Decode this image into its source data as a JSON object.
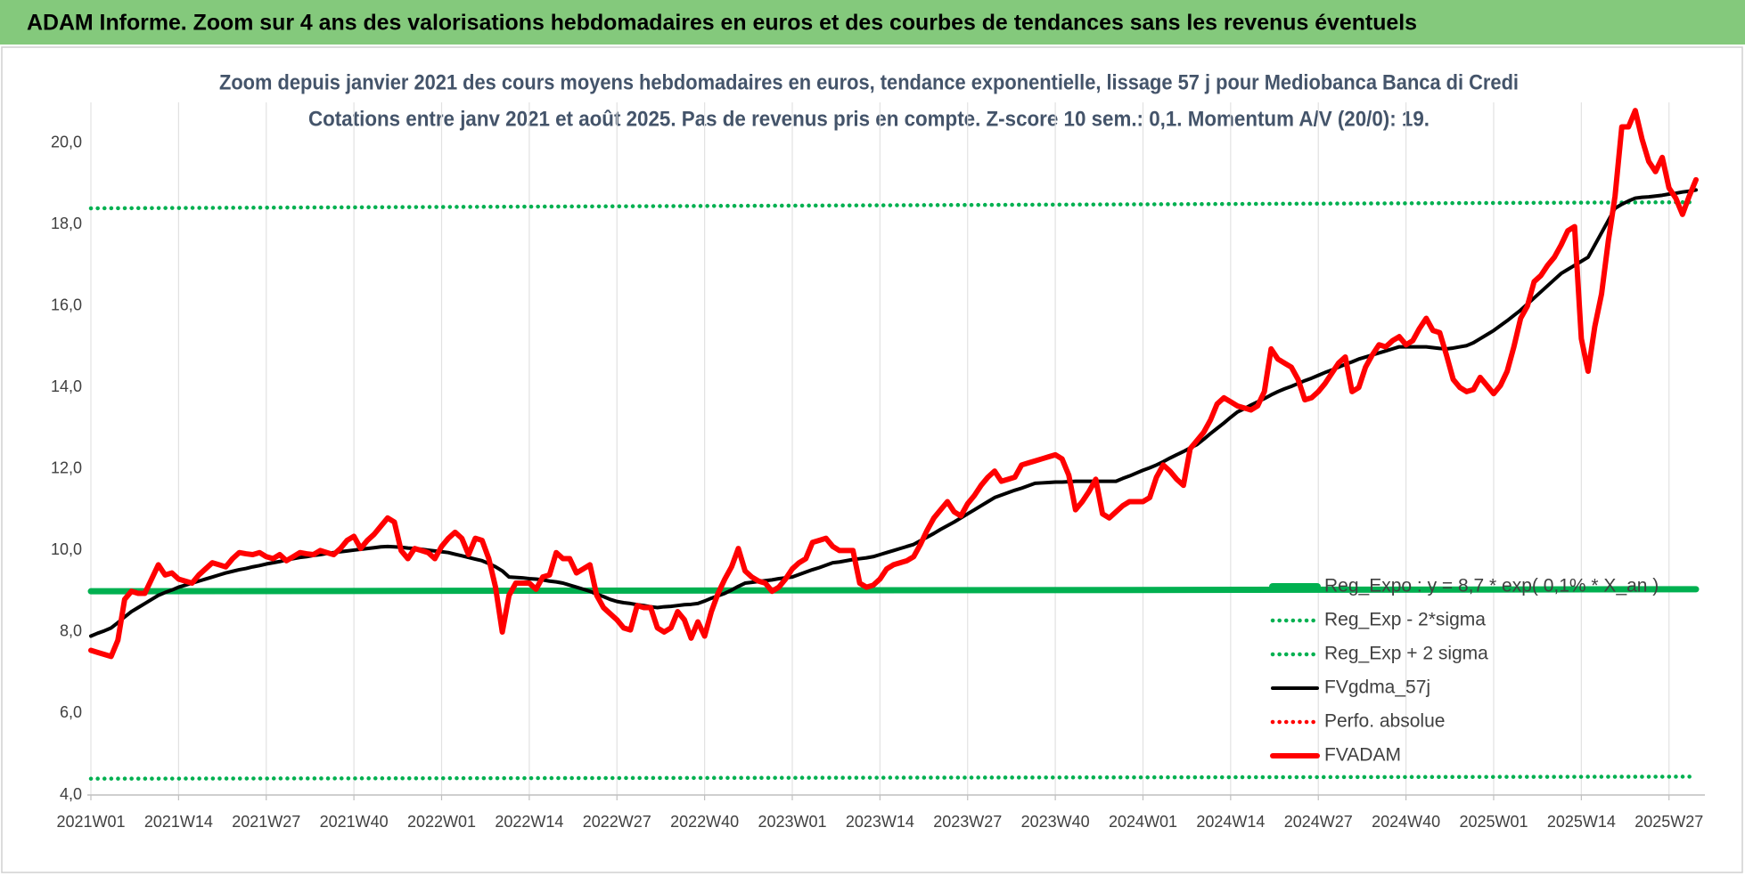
{
  "header": {
    "title": "ADAM Informe. Zoom sur 4 ans des valorisations hebdomadaires en euros et des courbes de tendances sans les revenus éventuels"
  },
  "chart_data": {
    "type": "line",
    "title": "Zoom depuis janvier 2021 des cours moyens hebdomadaires en euros, tendance exponentielle, lissage 57 j pour Mediobanca Banca di Credi",
    "subtitle": "Cotations entre janv 2021 et août 2025.  Pas de revenus pris en compte. Z-score 10 sem.: 0,1. Momentum A/V (20/0): 19.",
    "categories": [
      "2021W01",
      null,
      null,
      null,
      null,
      null,
      null,
      null,
      null,
      null,
      null,
      null,
      null,
      "2021W14",
      null,
      null,
      null,
      null,
      null,
      null,
      null,
      null,
      null,
      null,
      null,
      null,
      "2021W27",
      null,
      null,
      null,
      null,
      null,
      null,
      null,
      null,
      null,
      null,
      null,
      null,
      "2021W40",
      null,
      null,
      null,
      null,
      null,
      null,
      null,
      null,
      null,
      null,
      null,
      null,
      "2022W01",
      null,
      null,
      null,
      null,
      null,
      null,
      null,
      null,
      null,
      null,
      null,
      null,
      "2022W14",
      null,
      null,
      null,
      null,
      null,
      null,
      null,
      null,
      null,
      null,
      null,
      null,
      "2022W27",
      null,
      null,
      null,
      null,
      null,
      null,
      null,
      null,
      null,
      null,
      null,
      null,
      "2022W40",
      null,
      null,
      null,
      null,
      null,
      null,
      null,
      null,
      null,
      null,
      null,
      null,
      "2023W01",
      null,
      null,
      null,
      null,
      null,
      null,
      null,
      null,
      null,
      null,
      null,
      null,
      "2023W14",
      null,
      null,
      null,
      null,
      null,
      null,
      null,
      null,
      null,
      null,
      null,
      null,
      "2023W27",
      null,
      null,
      null,
      null,
      null,
      null,
      null,
      null,
      null,
      null,
      null,
      null,
      "2023W40",
      null,
      null,
      null,
      null,
      null,
      null,
      null,
      null,
      null,
      null,
      null,
      null,
      "2024W01",
      null,
      null,
      null,
      null,
      null,
      null,
      null,
      null,
      null,
      null,
      null,
      null,
      "2024W14",
      null,
      null,
      null,
      null,
      null,
      null,
      null,
      null,
      null,
      null,
      null,
      null,
      "2024W27",
      null,
      null,
      null,
      null,
      null,
      null,
      null,
      null,
      null,
      null,
      null,
      null,
      "2024W40",
      null,
      null,
      null,
      null,
      null,
      null,
      null,
      null,
      null,
      null,
      null,
      null,
      "2025W01",
      null,
      null,
      null,
      null,
      null,
      null,
      null,
      null,
      null,
      null,
      null,
      null,
      "2025W14",
      null,
      null,
      null,
      null,
      null,
      null,
      null,
      null,
      null,
      null,
      null,
      null,
      "2025W27",
      null,
      null,
      null,
      null
    ],
    "series": [
      {
        "name": "Reg_Expo : y = 8,7 * exp( 0,1% * X_an )",
        "color": "#00b050",
        "style": "solid",
        "ends": [
          9.0,
          9.05
        ]
      },
      {
        "name": "Reg_Exp - 2*sigma",
        "color": "#00b050",
        "style": "dotted",
        "ends": [
          4.4,
          4.45
        ]
      },
      {
        "name": "Reg_Exp + 2 sigma",
        "color": "#00b050",
        "style": "dotted",
        "ends": [
          18.4,
          18.55
        ]
      },
      {
        "name": "FVgdma_57j",
        "color": "#000000",
        "style": "solid",
        "values": [
          7.9,
          7.97,
          8.03,
          8.1,
          8.23,
          8.37,
          8.5,
          8.6,
          8.7,
          8.8,
          8.9,
          8.97,
          9.03,
          9.1,
          9.15,
          9.2,
          9.25,
          9.3,
          9.35,
          9.4,
          9.45,
          9.49,
          9.53,
          9.56,
          9.6,
          9.63,
          9.67,
          9.7,
          9.73,
          9.77,
          9.8,
          9.83,
          9.85,
          9.88,
          9.9,
          9.93,
          9.95,
          9.97,
          9.99,
          10.01,
          10.03,
          10.05,
          10.07,
          10.09,
          10.1,
          10.09,
          10.08,
          10.06,
          10.05,
          10.03,
          10.01,
          9.99,
          9.97,
          9.95,
          9.91,
          9.87,
          9.83,
          9.79,
          9.75,
          9.68,
          9.6,
          9.5,
          9.35,
          9.34,
          9.33,
          9.31,
          9.3,
          9.28,
          9.25,
          9.23,
          9.2,
          9.15,
          9.1,
          9.05,
          9.0,
          8.93,
          8.87,
          8.8,
          8.75,
          8.72,
          8.7,
          8.67,
          8.65,
          8.62,
          8.6,
          8.62,
          8.63,
          8.65,
          8.67,
          8.68,
          8.7,
          8.76,
          8.83,
          8.89,
          8.95,
          9.03,
          9.12,
          9.2,
          9.22,
          9.24,
          9.26,
          9.28,
          9.31,
          9.33,
          9.35,
          9.41,
          9.47,
          9.53,
          9.58,
          9.64,
          9.7,
          9.72,
          9.75,
          9.78,
          9.8,
          9.82,
          9.85,
          9.9,
          9.95,
          10.0,
          10.05,
          10.1,
          10.15,
          10.24,
          10.33,
          10.42,
          10.52,
          10.61,
          10.7,
          10.8,
          10.9,
          11.0,
          11.1,
          11.2,
          11.3,
          11.36,
          11.42,
          11.48,
          11.53,
          11.59,
          11.65,
          11.66,
          11.67,
          11.68,
          11.68,
          11.69,
          11.7,
          11.7,
          11.7,
          11.7,
          11.7,
          11.7,
          11.7,
          11.77,
          11.83,
          11.9,
          11.97,
          12.03,
          12.1,
          12.18,
          12.27,
          12.35,
          12.43,
          12.52,
          12.6,
          12.73,
          12.87,
          13.0,
          13.13,
          13.27,
          13.4,
          13.48,
          13.57,
          13.65,
          13.73,
          13.82,
          13.9,
          13.97,
          14.03,
          14.1,
          14.17,
          14.23,
          14.3,
          14.37,
          14.43,
          14.5,
          14.57,
          14.63,
          14.7,
          14.75,
          14.8,
          14.85,
          14.9,
          14.95,
          15.0,
          15.0,
          15.0,
          15.0,
          15.0,
          14.98,
          14.96,
          14.95,
          14.97,
          15.0,
          15.03,
          15.1,
          15.2,
          15.3,
          15.4,
          15.52,
          15.64,
          15.77,
          15.9,
          16.05,
          16.2,
          16.35,
          16.5,
          16.65,
          16.8,
          16.9,
          17.0,
          17.1,
          17.2,
          17.5,
          17.8,
          18.1,
          18.4,
          18.5,
          18.58,
          18.65,
          18.67,
          18.68,
          18.7,
          18.72,
          18.75,
          18.77,
          18.8,
          18.82,
          18.85
        ]
      },
      {
        "name": "Perfo. absolue",
        "color": "#ff0000",
        "style": "dotted"
      },
      {
        "name": "FVADAM",
        "color": "#ff0000",
        "style": "solid",
        "values": [
          7.55,
          7.5,
          7.45,
          7.4,
          7.8,
          8.8,
          9.0,
          8.95,
          8.95,
          9.3,
          9.65,
          9.4,
          9.45,
          9.3,
          9.25,
          9.2,
          9.4,
          9.55,
          9.7,
          9.65,
          9.6,
          9.8,
          9.95,
          9.92,
          9.9,
          9.95,
          9.85,
          9.8,
          9.9,
          9.75,
          9.85,
          9.95,
          9.92,
          9.9,
          10.0,
          9.95,
          9.9,
          10.05,
          10.25,
          10.35,
          10.05,
          10.25,
          10.4,
          10.6,
          10.8,
          10.7,
          10.0,
          9.8,
          10.05,
          10.0,
          9.95,
          9.8,
          10.1,
          10.3,
          10.45,
          10.3,
          9.9,
          10.3,
          10.25,
          9.8,
          9.1,
          8.0,
          8.9,
          9.2,
          9.2,
          9.2,
          9.05,
          9.35,
          9.4,
          9.95,
          9.8,
          9.8,
          9.45,
          9.55,
          9.65,
          8.9,
          8.6,
          8.45,
          8.3,
          8.1,
          8.05,
          8.65,
          8.6,
          8.6,
          8.1,
          8.0,
          8.1,
          8.5,
          8.3,
          7.85,
          8.25,
          7.9,
          8.5,
          8.95,
          9.3,
          9.6,
          10.05,
          9.5,
          9.35,
          9.25,
          9.2,
          9.0,
          9.1,
          9.3,
          9.55,
          9.7,
          9.8,
          10.2,
          10.25,
          10.3,
          10.1,
          10.0,
          10.0,
          10.0,
          9.2,
          9.1,
          9.15,
          9.3,
          9.55,
          9.65,
          9.7,
          9.75,
          9.85,
          10.15,
          10.5,
          10.8,
          11.0,
          11.2,
          10.95,
          10.85,
          11.15,
          11.35,
          11.6,
          11.8,
          11.95,
          11.7,
          11.75,
          11.8,
          12.1,
          12.15,
          12.2,
          12.25,
          12.3,
          12.35,
          12.25,
          11.85,
          11.0,
          11.2,
          11.45,
          11.75,
          10.9,
          10.8,
          10.95,
          11.1,
          11.2,
          11.2,
          11.2,
          11.3,
          11.8,
          12.1,
          11.95,
          11.75,
          11.6,
          12.5,
          12.7,
          12.9,
          13.2,
          13.6,
          13.75,
          13.65,
          13.55,
          13.5,
          13.45,
          13.55,
          13.9,
          14.95,
          14.7,
          14.6,
          14.5,
          14.2,
          13.7,
          13.75,
          13.9,
          14.1,
          14.35,
          14.6,
          14.75,
          13.9,
          14.0,
          14.5,
          14.8,
          15.05,
          15.0,
          15.15,
          15.25,
          15.05,
          15.15,
          15.45,
          15.7,
          15.4,
          15.35,
          14.8,
          14.2,
          14.0,
          13.9,
          13.95,
          14.25,
          14.05,
          13.85,
          14.05,
          14.4,
          15.0,
          15.7,
          16.0,
          16.6,
          16.75,
          17.0,
          17.2,
          17.5,
          17.85,
          17.95,
          15.2,
          14.4,
          15.5,
          16.3,
          17.6,
          18.7,
          20.4,
          20.4,
          20.8,
          20.1,
          19.55,
          19.3,
          19.65,
          18.9,
          18.65,
          18.25,
          18.7,
          19.1
        ]
      }
    ],
    "ylim": [
      4,
      21
    ],
    "yticks": [
      {
        "value": 4,
        "label": "4,0"
      },
      {
        "value": 6,
        "label": "6,0"
      },
      {
        "value": 8,
        "label": "8,0"
      },
      {
        "value": 10,
        "label": "10,0"
      },
      {
        "value": 12,
        "label": "12,0"
      },
      {
        "value": 14,
        "label": "14,0"
      },
      {
        "value": 16,
        "label": "16,0"
      },
      {
        "value": 18,
        "label": "18,0"
      },
      {
        "value": 20,
        "label": "20,0"
      }
    ],
    "grid": "x"
  }
}
